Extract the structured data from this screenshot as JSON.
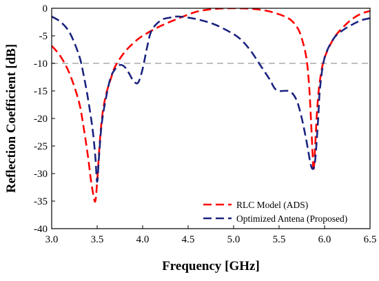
{
  "chart_data": {
    "type": "line",
    "title": "",
    "xlabel": "Frequency [GHz]",
    "ylabel": "Reflection Coefficient [dB]",
    "xlim": [
      3.0,
      6.5
    ],
    "ylim": [
      -40,
      0
    ],
    "xticks": [
      "3.0",
      "3.5",
      "4.0",
      "4.5",
      "5.0",
      "5.5",
      "6.0",
      "6.5"
    ],
    "yticks": [
      "0",
      "-5",
      "-10",
      "-15",
      "-20",
      "-25",
      "-30",
      "-35",
      "-40"
    ],
    "grid": false,
    "legend_position": "bottom-right",
    "reference_line": {
      "y": -10,
      "color": "#bfbfbf",
      "style": "dashed"
    },
    "series": [
      {
        "name": "RLC Model (ADS)",
        "color": "#ff0000",
        "style": "dashed",
        "x": [
          3.0,
          3.1,
          3.2,
          3.3,
          3.35,
          3.4,
          3.43,
          3.46,
          3.48,
          3.5,
          3.53,
          3.56,
          3.6,
          3.65,
          3.7,
          3.8,
          3.9,
          4.0,
          4.2,
          4.4,
          4.6,
          4.8,
          5.0,
          5.2,
          5.4,
          5.6,
          5.7,
          5.75,
          5.8,
          5.83,
          5.85,
          5.87,
          5.88,
          5.9,
          5.92,
          5.95,
          6.0,
          6.1,
          6.2,
          6.3,
          6.4,
          6.5
        ],
        "y": [
          -6.8,
          -8.8,
          -12,
          -17,
          -21.5,
          -27,
          -31,
          -34,
          -35,
          -31.5,
          -24,
          -19,
          -15.5,
          -12.8,
          -10.5,
          -8,
          -6.3,
          -5,
          -3.2,
          -1.8,
          -0.6,
          -0.1,
          0,
          -0.1,
          -0.6,
          -1.8,
          -3.5,
          -5.5,
          -9,
          -14,
          -20,
          -27,
          -29.5,
          -24,
          -18,
          -13,
          -9,
          -5.5,
          -3.5,
          -2,
          -1,
          -0.5
        ]
      },
      {
        "name": "Optimized Antena (Proposed)",
        "color": "#1a237e",
        "style": "dashed",
        "x": [
          3.0,
          3.1,
          3.2,
          3.3,
          3.35,
          3.4,
          3.45,
          3.48,
          3.5,
          3.52,
          3.55,
          3.6,
          3.65,
          3.7,
          3.75,
          3.8,
          3.85,
          3.9,
          3.95,
          4.0,
          4.05,
          4.1,
          4.2,
          4.3,
          4.4,
          4.6,
          4.8,
          5.0,
          5.1,
          5.2,
          5.3,
          5.4,
          5.45,
          5.5,
          5.6,
          5.65,
          5.7,
          5.75,
          5.8,
          5.85,
          5.88,
          5.9,
          5.93,
          5.95,
          6.0,
          6.1,
          6.2,
          6.3,
          6.4,
          6.5
        ],
        "y": [
          -1.5,
          -2.5,
          -4.5,
          -8.5,
          -12,
          -16.5,
          -22,
          -27,
          -31.5,
          -27,
          -21,
          -16,
          -12.5,
          -11,
          -10.3,
          -10.6,
          -11.8,
          -13.2,
          -13.5,
          -11,
          -7,
          -4,
          -2.2,
          -1.7,
          -1.5,
          -2,
          -3,
          -4.7,
          -6,
          -8,
          -10.5,
          -13,
          -14.5,
          -15,
          -15,
          -15.5,
          -17,
          -20,
          -24,
          -28.5,
          -29,
          -27,
          -20,
          -14.5,
          -9,
          -5.5,
          -4,
          -3,
          -2.2,
          -1.8
        ]
      }
    ]
  }
}
